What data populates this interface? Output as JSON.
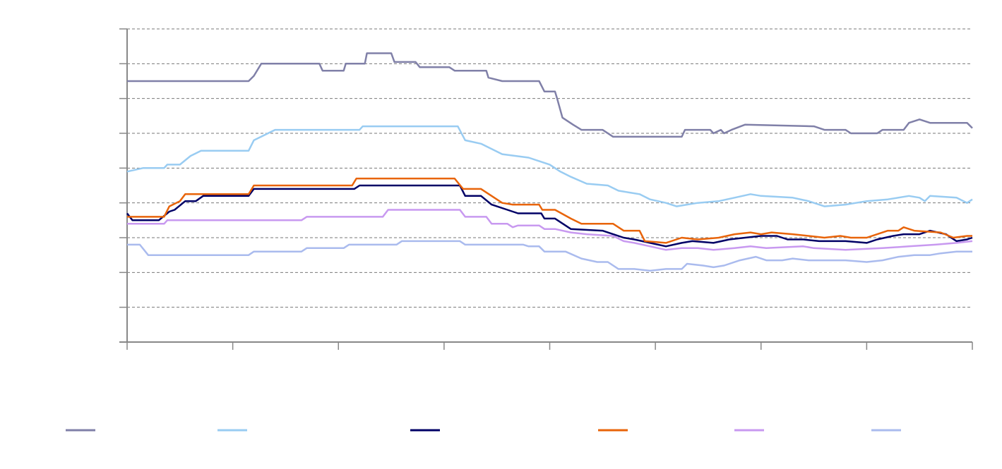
{
  "chart_data": {
    "type": "line",
    "title": "",
    "xlabel": "",
    "ylabel": "",
    "grid": true,
    "legend": "bottom",
    "x_range": [
      0,
      8
    ],
    "ylim": [
      0,
      9
    ],
    "y_gridlines": [
      1,
      2,
      3,
      4,
      5,
      6,
      7,
      8,
      9
    ],
    "x_ticks": [
      0,
      1,
      2,
      3,
      4,
      5,
      6,
      7,
      8
    ],
    "series": [
      {
        "color": "#8080A8",
        "points": [
          [
            0,
            7.5
          ],
          [
            1.15,
            7.5
          ],
          [
            1.2,
            7.65
          ],
          [
            1.27,
            8
          ],
          [
            1.82,
            8
          ],
          [
            1.85,
            7.8
          ],
          [
            2.05,
            7.8
          ],
          [
            2.07,
            8
          ],
          [
            2.25,
            8
          ],
          [
            2.27,
            8.3
          ],
          [
            2.5,
            8.3
          ],
          [
            2.53,
            8.05
          ],
          [
            2.73,
            8.05
          ],
          [
            2.77,
            7.9
          ],
          [
            3.05,
            7.9
          ],
          [
            3.1,
            7.8
          ],
          [
            3.4,
            7.8
          ],
          [
            3.42,
            7.6
          ],
          [
            3.55,
            7.5
          ],
          [
            3.9,
            7.5
          ],
          [
            3.95,
            7.2
          ],
          [
            4.05,
            7.2
          ],
          [
            4.07,
            7
          ],
          [
            4.12,
            6.45
          ],
          [
            4.22,
            6.25
          ],
          [
            4.3,
            6.1
          ],
          [
            4.5,
            6.1
          ],
          [
            4.6,
            5.9
          ],
          [
            5.25,
            5.9
          ],
          [
            5.28,
            6.1
          ],
          [
            5.52,
            6.1
          ],
          [
            5.55,
            6.0
          ],
          [
            5.62,
            6.1
          ],
          [
            5.65,
            6.0
          ],
          [
            5.72,
            6.1
          ],
          [
            5.85,
            6.25
          ],
          [
            6.5,
            6.2
          ],
          [
            6.6,
            6.1
          ],
          [
            6.8,
            6.1
          ],
          [
            6.85,
            6.0
          ],
          [
            7.1,
            6.0
          ],
          [
            7.15,
            6.1
          ],
          [
            7.35,
            6.1
          ],
          [
            7.4,
            6.3
          ],
          [
            7.5,
            6.4
          ],
          [
            7.6,
            6.3
          ],
          [
            7.95,
            6.3
          ],
          [
            8,
            6.15
          ]
        ]
      },
      {
        "color": "#99CCF2",
        "points": [
          [
            0,
            4.9
          ],
          [
            0.15,
            5.0
          ],
          [
            0.35,
            5.0
          ],
          [
            0.38,
            5.1
          ],
          [
            0.5,
            5.1
          ],
          [
            0.6,
            5.35
          ],
          [
            0.7,
            5.5
          ],
          [
            1.15,
            5.5
          ],
          [
            1.2,
            5.8
          ],
          [
            1.3,
            5.95
          ],
          [
            1.4,
            6.1
          ],
          [
            2.2,
            6.1
          ],
          [
            2.23,
            6.2
          ],
          [
            3.13,
            6.2
          ],
          [
            3.2,
            5.8
          ],
          [
            3.35,
            5.7
          ],
          [
            3.55,
            5.4
          ],
          [
            3.8,
            5.3
          ],
          [
            4.0,
            5.1
          ],
          [
            4.1,
            4.9
          ],
          [
            4.2,
            4.75
          ],
          [
            4.35,
            4.55
          ],
          [
            4.55,
            4.5
          ],
          [
            4.65,
            4.35
          ],
          [
            4.75,
            4.3
          ],
          [
            4.85,
            4.25
          ],
          [
            4.95,
            4.1
          ],
          [
            5.1,
            4.0
          ],
          [
            5.2,
            3.9
          ],
          [
            5.3,
            3.95
          ],
          [
            5.4,
            4.0
          ],
          [
            5.6,
            4.05
          ],
          [
            5.75,
            4.15
          ],
          [
            5.9,
            4.25
          ],
          [
            6.0,
            4.2
          ],
          [
            6.3,
            4.15
          ],
          [
            6.45,
            4.05
          ],
          [
            6.6,
            3.9
          ],
          [
            6.8,
            3.95
          ],
          [
            7.0,
            4.05
          ],
          [
            7.2,
            4.1
          ],
          [
            7.4,
            4.2
          ],
          [
            7.5,
            4.15
          ],
          [
            7.55,
            4.05
          ],
          [
            7.6,
            4.2
          ],
          [
            7.85,
            4.15
          ],
          [
            7.95,
            4.0
          ],
          [
            8,
            4.1
          ]
        ]
      },
      {
        "color": "#000066",
        "points": [
          [
            0,
            3.7
          ],
          [
            0.05,
            3.5
          ],
          [
            0.3,
            3.5
          ],
          [
            0.4,
            3.75
          ],
          [
            0.45,
            3.8
          ],
          [
            0.55,
            4.05
          ],
          [
            0.65,
            4.05
          ],
          [
            0.72,
            4.2
          ],
          [
            1.15,
            4.2
          ],
          [
            1.2,
            4.4
          ],
          [
            2.15,
            4.4
          ],
          [
            2.2,
            4.5
          ],
          [
            3.15,
            4.5
          ],
          [
            3.2,
            4.2
          ],
          [
            3.35,
            4.2
          ],
          [
            3.45,
            3.95
          ],
          [
            3.6,
            3.8
          ],
          [
            3.7,
            3.7
          ],
          [
            3.92,
            3.7
          ],
          [
            3.95,
            3.55
          ],
          [
            4.05,
            3.55
          ],
          [
            4.2,
            3.25
          ],
          [
            4.5,
            3.2
          ],
          [
            4.6,
            3.1
          ],
          [
            4.7,
            3.0
          ],
          [
            4.8,
            2.95
          ],
          [
            4.95,
            2.85
          ],
          [
            5.1,
            2.75
          ],
          [
            5.25,
            2.85
          ],
          [
            5.35,
            2.9
          ],
          [
            5.55,
            2.85
          ],
          [
            5.7,
            2.95
          ],
          [
            5.85,
            3.0
          ],
          [
            6.0,
            3.05
          ],
          [
            6.15,
            3.05
          ],
          [
            6.25,
            2.95
          ],
          [
            6.4,
            2.95
          ],
          [
            6.55,
            2.9
          ],
          [
            6.8,
            2.9
          ],
          [
            7.0,
            2.85
          ],
          [
            7.1,
            2.95
          ],
          [
            7.25,
            3.05
          ],
          [
            7.35,
            3.1
          ],
          [
            7.5,
            3.1
          ],
          [
            7.6,
            3.2
          ],
          [
            7.75,
            3.1
          ],
          [
            7.85,
            2.9
          ],
          [
            7.95,
            2.95
          ],
          [
            8,
            3.0
          ]
        ]
      },
      {
        "color": "#E8640A",
        "points": [
          [
            0,
            3.6
          ],
          [
            0.35,
            3.6
          ],
          [
            0.4,
            3.9
          ],
          [
            0.5,
            4.05
          ],
          [
            0.55,
            4.25
          ],
          [
            1.15,
            4.25
          ],
          [
            1.2,
            4.5
          ],
          [
            2.13,
            4.5
          ],
          [
            2.17,
            4.7
          ],
          [
            3.1,
            4.7
          ],
          [
            3.18,
            4.4
          ],
          [
            3.35,
            4.4
          ],
          [
            3.45,
            4.2
          ],
          [
            3.55,
            4.0
          ],
          [
            3.65,
            3.95
          ],
          [
            3.9,
            3.95
          ],
          [
            3.93,
            3.8
          ],
          [
            4.05,
            3.8
          ],
          [
            4.2,
            3.55
          ],
          [
            4.3,
            3.4
          ],
          [
            4.6,
            3.4
          ],
          [
            4.7,
            3.2
          ],
          [
            4.85,
            3.2
          ],
          [
            4.9,
            2.9
          ],
          [
            5.1,
            2.85
          ],
          [
            5.25,
            3.0
          ],
          [
            5.4,
            2.95
          ],
          [
            5.6,
            3.0
          ],
          [
            5.75,
            3.1
          ],
          [
            5.9,
            3.15
          ],
          [
            6.0,
            3.1
          ],
          [
            6.1,
            3.15
          ],
          [
            6.3,
            3.1
          ],
          [
            6.45,
            3.05
          ],
          [
            6.6,
            3.0
          ],
          [
            6.75,
            3.05
          ],
          [
            6.85,
            3.0
          ],
          [
            7.0,
            3.0
          ],
          [
            7.1,
            3.1
          ],
          [
            7.2,
            3.2
          ],
          [
            7.3,
            3.2
          ],
          [
            7.35,
            3.3
          ],
          [
            7.45,
            3.2
          ],
          [
            7.7,
            3.15
          ],
          [
            7.82,
            3.0
          ],
          [
            7.95,
            3.05
          ],
          [
            8,
            3.05
          ]
        ]
      },
      {
        "color": "#C899F0",
        "points": [
          [
            0,
            3.4
          ],
          [
            0.35,
            3.4
          ],
          [
            0.38,
            3.5
          ],
          [
            1.65,
            3.5
          ],
          [
            1.7,
            3.6
          ],
          [
            2.42,
            3.6
          ],
          [
            2.47,
            3.8
          ],
          [
            3.15,
            3.8
          ],
          [
            3.2,
            3.6
          ],
          [
            3.4,
            3.6
          ],
          [
            3.45,
            3.4
          ],
          [
            3.6,
            3.4
          ],
          [
            3.65,
            3.3
          ],
          [
            3.7,
            3.35
          ],
          [
            3.9,
            3.35
          ],
          [
            3.95,
            3.25
          ],
          [
            4.05,
            3.25
          ],
          [
            4.2,
            3.15
          ],
          [
            4.35,
            3.1
          ],
          [
            4.6,
            3.05
          ],
          [
            4.7,
            2.9
          ],
          [
            4.8,
            2.85
          ],
          [
            4.95,
            2.75
          ],
          [
            5.1,
            2.65
          ],
          [
            5.25,
            2.7
          ],
          [
            5.4,
            2.7
          ],
          [
            5.55,
            2.65
          ],
          [
            5.75,
            2.7
          ],
          [
            5.9,
            2.75
          ],
          [
            6.05,
            2.7
          ],
          [
            6.4,
            2.75
          ],
          [
            6.5,
            2.7
          ],
          [
            6.8,
            2.65
          ],
          [
            7.15,
            2.7
          ],
          [
            7.4,
            2.75
          ],
          [
            7.65,
            2.8
          ],
          [
            7.85,
            2.85
          ],
          [
            8,
            2.9
          ]
        ]
      },
      {
        "color": "#AABBEE",
        "points": [
          [
            0,
            2.8
          ],
          [
            0.12,
            2.8
          ],
          [
            0.2,
            2.5
          ],
          [
            1.15,
            2.5
          ],
          [
            1.2,
            2.6
          ],
          [
            1.65,
            2.6
          ],
          [
            1.7,
            2.7
          ],
          [
            2.05,
            2.7
          ],
          [
            2.1,
            2.8
          ],
          [
            2.55,
            2.8
          ],
          [
            2.6,
            2.9
          ],
          [
            3.15,
            2.9
          ],
          [
            3.2,
            2.8
          ],
          [
            3.75,
            2.8
          ],
          [
            3.8,
            2.75
          ],
          [
            3.9,
            2.75
          ],
          [
            3.95,
            2.6
          ],
          [
            4.15,
            2.6
          ],
          [
            4.3,
            2.4
          ],
          [
            4.45,
            2.3
          ],
          [
            4.55,
            2.3
          ],
          [
            4.65,
            2.1
          ],
          [
            4.8,
            2.1
          ],
          [
            4.95,
            2.05
          ],
          [
            5.1,
            2.1
          ],
          [
            5.25,
            2.1
          ],
          [
            5.3,
            2.25
          ],
          [
            5.45,
            2.2
          ],
          [
            5.55,
            2.15
          ],
          [
            5.65,
            2.2
          ],
          [
            5.8,
            2.35
          ],
          [
            5.95,
            2.45
          ],
          [
            6.05,
            2.35
          ],
          [
            6.2,
            2.35
          ],
          [
            6.3,
            2.4
          ],
          [
            6.45,
            2.35
          ],
          [
            6.6,
            2.35
          ],
          [
            6.8,
            2.35
          ],
          [
            7.0,
            2.3
          ],
          [
            7.15,
            2.35
          ],
          [
            7.3,
            2.45
          ],
          [
            7.45,
            2.5
          ],
          [
            7.6,
            2.5
          ],
          [
            7.7,
            2.55
          ],
          [
            7.85,
            2.6
          ],
          [
            8,
            2.6
          ]
        ]
      }
    ]
  }
}
